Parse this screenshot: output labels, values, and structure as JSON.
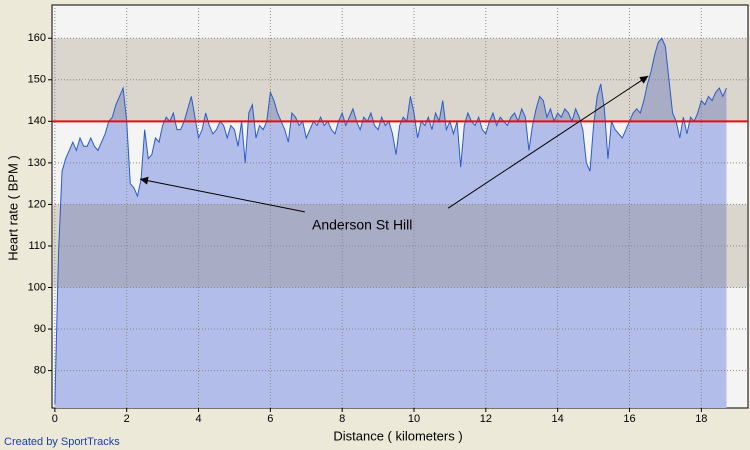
{
  "chart_data": {
    "type": "area",
    "y_label": "Heart rate ( BPM )",
    "x_label": "Distance ( kilometers )",
    "credit": "Created by SportTracks",
    "x": [
      0.0,
      0.1,
      0.2,
      0.3,
      0.4,
      0.5,
      0.6,
      0.7,
      0.8,
      0.9,
      1.0,
      1.1,
      1.2,
      1.3,
      1.4,
      1.5,
      1.6,
      1.7,
      1.8,
      1.9,
      2.0,
      2.1,
      2.2,
      2.3,
      2.4,
      2.5,
      2.6,
      2.7,
      2.8,
      2.9,
      3.0,
      3.1,
      3.2,
      3.3,
      3.4,
      3.5,
      3.6,
      3.7,
      3.8,
      3.9,
      4.0,
      4.1,
      4.2,
      4.3,
      4.4,
      4.5,
      4.6,
      4.7,
      4.8,
      4.9,
      5.0,
      5.1,
      5.2,
      5.3,
      5.4,
      5.5,
      5.6,
      5.7,
      5.8,
      5.9,
      6.0,
      6.1,
      6.2,
      6.3,
      6.4,
      6.5,
      6.6,
      6.7,
      6.8,
      6.9,
      7.0,
      7.1,
      7.2,
      7.3,
      7.4,
      7.5,
      7.6,
      7.7,
      7.8,
      7.9,
      8.0,
      8.1,
      8.2,
      8.3,
      8.4,
      8.5,
      8.6,
      8.7,
      8.8,
      8.9,
      9.0,
      9.1,
      9.2,
      9.3,
      9.4,
      9.5,
      9.6,
      9.7,
      9.8,
      9.9,
      10.0,
      10.1,
      10.2,
      10.3,
      10.4,
      10.5,
      10.6,
      10.7,
      10.8,
      10.9,
      11.0,
      11.1,
      11.2,
      11.3,
      11.4,
      11.5,
      11.6,
      11.7,
      11.8,
      11.9,
      12.0,
      12.1,
      12.2,
      12.3,
      12.4,
      12.5,
      12.6,
      12.7,
      12.8,
      12.9,
      13.0,
      13.1,
      13.2,
      13.3,
      13.4,
      13.5,
      13.6,
      13.7,
      13.8,
      13.9,
      14.0,
      14.1,
      14.2,
      14.3,
      14.4,
      14.5,
      14.6,
      14.7,
      14.8,
      14.9,
      15.0,
      15.1,
      15.2,
      15.3,
      15.4,
      15.5,
      15.6,
      15.7,
      15.8,
      15.9,
      16.0,
      16.1,
      16.2,
      16.3,
      16.4,
      16.5,
      16.6,
      16.7,
      16.8,
      16.9,
      17.0,
      17.1,
      17.2,
      17.3,
      17.4,
      17.5,
      17.6,
      17.7,
      17.8,
      17.9,
      18.0,
      18.1,
      18.2,
      18.3,
      18.4,
      18.5,
      18.6,
      18.7
    ],
    "values": [
      72,
      108,
      128,
      131,
      133,
      135,
      133,
      136,
      134,
      134,
      136,
      134,
      133,
      135,
      137,
      140,
      141,
      144,
      146,
      148,
      140,
      125,
      124,
      122,
      126,
      138,
      131,
      132,
      136,
      135,
      139,
      141,
      140,
      142,
      138,
      138,
      140,
      143,
      146,
      141,
      136,
      138,
      142,
      139,
      137,
      138,
      140,
      139,
      136,
      139,
      138,
      134,
      140,
      130,
      142,
      144,
      136,
      139,
      138,
      140,
      147,
      145,
      142,
      140,
      138,
      135,
      142,
      141,
      139,
      140,
      136,
      138,
      140,
      139,
      141,
      139,
      140,
      138,
      137,
      140,
      142,
      139,
      141,
      143,
      140,
      138,
      141,
      140,
      142,
      139,
      138,
      141,
      139,
      140,
      137,
      132,
      139,
      141,
      140,
      146,
      142,
      136,
      140,
      139,
      141,
      138,
      142,
      140,
      145,
      138,
      140,
      137,
      140,
      129,
      139,
      142,
      140,
      139,
      141,
      138,
      137,
      140,
      142,
      139,
      141,
      140,
      139,
      141,
      142,
      140,
      143,
      141,
      133,
      139,
      143,
      146,
      145,
      141,
      143,
      140,
      142,
      141,
      143,
      142,
      140,
      143,
      141,
      138,
      130,
      128,
      139,
      146,
      149,
      143,
      131,
      140,
      138,
      137,
      136,
      138,
      140,
      142,
      143,
      142,
      145,
      149,
      152,
      156,
      159,
      160,
      158,
      150,
      142,
      140,
      136,
      141,
      137,
      141,
      140,
      142,
      145,
      144,
      146,
      145,
      147,
      148,
      146,
      148
    ],
    "color": "#2a5cc4",
    "fill": "#b3bde9",
    "xlim": [
      -0.08,
      19.3
    ],
    "ylim": [
      71,
      168
    ],
    "xticks": [
      0,
      2,
      4,
      6,
      8,
      10,
      12,
      14,
      16,
      18
    ],
    "yticks": [
      80,
      90,
      100,
      110,
      120,
      130,
      140,
      150,
      160
    ],
    "grid": true,
    "zones": [
      [
        100,
        120
      ],
      [
        140,
        160
      ]
    ],
    "threshold": {
      "value": 140,
      "color": "#e01010"
    },
    "annotation": {
      "text": "Anderson St Hill",
      "x": 7.16,
      "y": 114.8,
      "arrows": [
        {
          "from": [
            6.96,
            118.2
          ],
          "to": [
            2.37,
            126.1
          ]
        },
        {
          "from": [
            10.95,
            119.1
          ],
          "to": [
            16.52,
            150.9
          ]
        }
      ]
    }
  }
}
